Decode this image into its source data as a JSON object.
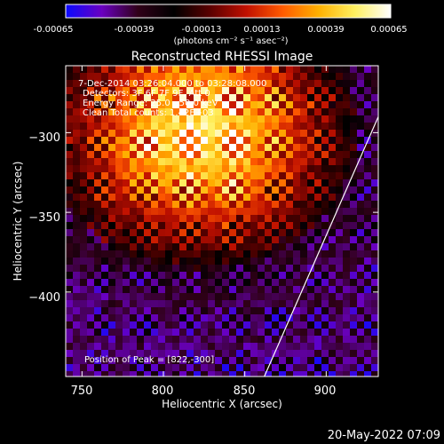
{
  "footer": {
    "date": "20-May-2022 07:09"
  },
  "colorbar": {
    "ticks": [
      "-0.00065",
      "-0.00039",
      "-0.00013",
      "0.00013",
      "0.00039",
      "0.00065"
    ],
    "unit_label": "(photons cm⁻² s⁻¹ asec⁻²)",
    "range": [
      -0.00065,
      0.00065
    ],
    "colors": [
      "#0a0aff",
      "#6a00c0",
      "#300018",
      "#000000",
      "#5a0000",
      "#c01000",
      "#ff5a00",
      "#ffb000",
      "#fff060",
      "#ffffff"
    ]
  },
  "chart_data": {
    "type": "heatmap",
    "title": "Reconstructed RHESSI Image",
    "xlabel": "Heliocentric X (arcsec)",
    "ylabel": "Heliocentric Y (arcsec)",
    "xlim": [
      740,
      932
    ],
    "ylim": [
      -453,
      -258
    ],
    "x_ticks": [
      750,
      800,
      850,
      900
    ],
    "y_ticks": [
      -300,
      -350,
      -400
    ],
    "x_tick_labels": [
      "750",
      "800",
      "850",
      "900"
    ],
    "y_tick_labels": [
      "−300",
      "−350",
      "−400"
    ],
    "annotations": [
      "7-Dec-2014 03:26:04.000 to 03:28:08.000",
      "Detectors: 3F 6F 7F 9F, Att 0",
      "Energy Range: 25.0 - 50.0 keV",
      "Clean    Total counts: 1.42E+03",
      "Position of Peak = [822,-300]"
    ],
    "peak": [
      822,
      -300
    ],
    "limb_line": [
      [
        862,
        -453
      ],
      [
        932,
        -290
      ]
    ],
    "grid": false
  }
}
